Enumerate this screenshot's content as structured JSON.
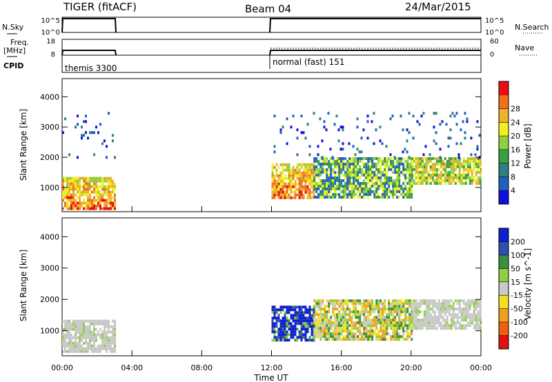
{
  "header": {
    "radar": "TIGER (fitACF)",
    "beam": "Beam 04",
    "date": "24/Mar/2015"
  },
  "strip": {
    "left_labels": {
      "nsky": "N.Sky",
      "freq_line1": "Freq.",
      "freq_line2": "[MHz]",
      "cpid": "CPID"
    },
    "right_labels": {
      "nsearch": "N.Search",
      "nave": "Nave"
    },
    "nsky_ticks": [
      "10^5",
      "10^0"
    ],
    "nsearch_ticks": [
      "10^5",
      "10^0"
    ],
    "freq_ticks": [
      "18",
      "8"
    ],
    "nave_ticks": [
      "60",
      "0"
    ],
    "cpid_segments": [
      {
        "label": "themis 3300",
        "start": 0.0,
        "end": 3.0
      },
      {
        "label": "normal (fast) 151",
        "start": 12.0,
        "end": 24.0
      }
    ]
  },
  "chart_data": [
    {
      "type": "heatmap",
      "panel": "power",
      "title": "",
      "xlabel": "Time UT",
      "ylabel": "Slant Range [km]",
      "xlim": [
        0,
        24
      ],
      "ylim": [
        200,
        4600
      ],
      "x_tick_labels": [
        "00:00",
        "04:00",
        "08:00",
        "12:00",
        "16:00",
        "20:00",
        "00:00"
      ],
      "y_tick_labels": [
        "1000",
        "2000",
        "3000",
        "4000"
      ],
      "colorbar": {
        "label": "Power [dB]",
        "tick_labels": [
          "4",
          "8",
          "12",
          "16",
          "20",
          "24",
          "28"
        ],
        "colors": [
          "#1010e0",
          "#1f5fc0",
          "#2f7f7f",
          "#3aa040",
          "#8fd040",
          "#f0f020",
          "#f0b030",
          "#f07020",
          "#e81010"
        ]
      },
      "echo_regions": [
        {
          "t0": 0.0,
          "t1": 3.0,
          "r0": 300,
          "r1": 1350,
          "level": "high"
        },
        {
          "t0": 0.0,
          "t1": 3.0,
          "r0": 2000,
          "r1": 3500,
          "level": "sparse-low"
        },
        {
          "t0": 12.0,
          "t1": 14.4,
          "r0": 700,
          "r1": 1800,
          "level": "high"
        },
        {
          "t0": 14.4,
          "t1": 20.0,
          "r0": 700,
          "r1": 2000,
          "level": "medium"
        },
        {
          "t0": 20.0,
          "t1": 24.0,
          "r0": 1100,
          "r1": 2000,
          "level": "medium-high"
        },
        {
          "t0": 12.0,
          "t1": 24.0,
          "r0": 2000,
          "r1": 3500,
          "level": "sparse-low"
        }
      ]
    },
    {
      "type": "heatmap",
      "panel": "velocity",
      "title": "",
      "xlabel": "Time UT",
      "ylabel": "Slant Range [km]",
      "xlim": [
        0,
        24
      ],
      "ylim": [
        200,
        4600
      ],
      "x_tick_labels": [
        "00:00",
        "04:00",
        "08:00",
        "12:00",
        "16:00",
        "20:00",
        "00:00"
      ],
      "y_tick_labels": [
        "1000",
        "2000",
        "3000",
        "4000"
      ],
      "colorbar": {
        "label": "Velocity [m s^-1]",
        "tick_labels": [
          "200",
          "100",
          "50",
          "15",
          "-15",
          "-50",
          "-100",
          "-200"
        ],
        "colors": [
          "#1020d0",
          "#3050b0",
          "#3a9040",
          "#90d040",
          "#c8c8c8",
          "#f0e020",
          "#f0a020",
          "#f06010",
          "#e01010"
        ]
      },
      "echo_regions": [
        {
          "t0": 0.0,
          "t1": 3.0,
          "r0": 300,
          "r1": 1350,
          "level": "ground-grey"
        },
        {
          "t0": 12.0,
          "t1": 14.4,
          "r0": 700,
          "r1": 1800,
          "level": "blue-positive"
        },
        {
          "t0": 14.4,
          "t1": 20.0,
          "r0": 700,
          "r1": 2000,
          "level": "mixed-orange-grey"
        },
        {
          "t0": 20.0,
          "t1": 24.0,
          "r0": 1100,
          "r1": 2000,
          "level": "grey"
        }
      ]
    }
  ]
}
